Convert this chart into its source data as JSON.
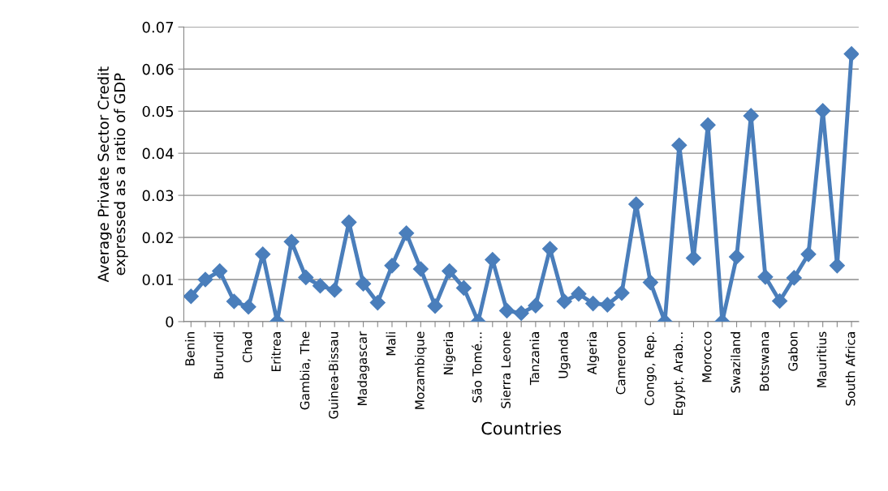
{
  "chart_data": {
    "type": "line",
    "xlabel": "Countries",
    "ylabel": "Average Private Sector Credit\nexpressed as a ratio of GDP",
    "categories": [
      "Benin",
      null,
      "Burundi",
      null,
      "Chad",
      null,
      "Eritrea",
      null,
      "Gambia, The",
      null,
      "Guinea-Bissau",
      null,
      "Madagascar",
      null,
      "Mali",
      null,
      "Mozambique",
      null,
      "Nigeria",
      null,
      "São Tomé…",
      null,
      "Sierra Leone",
      null,
      "Tanzania",
      null,
      "Uganda",
      null,
      "Algeria",
      null,
      "Cameroon",
      null,
      "Congo, Rep.",
      null,
      "Egypt, Arab…",
      null,
      "Morocco",
      null,
      "Swaziland",
      null,
      "Botswana",
      null,
      "Gabon",
      null,
      "Mauritius",
      null,
      "South Africa"
    ],
    "series": [
      {
        "color": "#4a7ebb",
        "values": [
          0.006,
          0.01,
          0.012,
          0.0048,
          0.0035,
          0.016,
          0,
          0.019,
          0.0105,
          0.0085,
          0.0075,
          0.0236,
          0.009,
          0.0045,
          0.0133,
          0.021,
          0.0125,
          0.0037,
          0.012,
          0.008,
          0,
          0.0147,
          0.0026,
          0.002,
          0.0038,
          0.0173,
          0.0048,
          0.0066,
          0.0043,
          0.004,
          0.0068,
          0.0279,
          0.0093,
          0,
          0.0419,
          0.0151,
          0.0467,
          0,
          0.0154,
          0.0489,
          0.0106,
          0.0049,
          0.0104,
          0.016,
          0.0501,
          0.0133,
          0.0636
        ]
      }
    ],
    "ylim": [
      0,
      0.07
    ],
    "yticks": [
      {
        "value": 0,
        "label": "0"
      },
      0.01,
      0.02,
      0.03,
      0.04,
      0.05,
      0.06,
      0.07
    ],
    "grid": "y",
    "marker": "diamond",
    "line_style": "solid"
  }
}
